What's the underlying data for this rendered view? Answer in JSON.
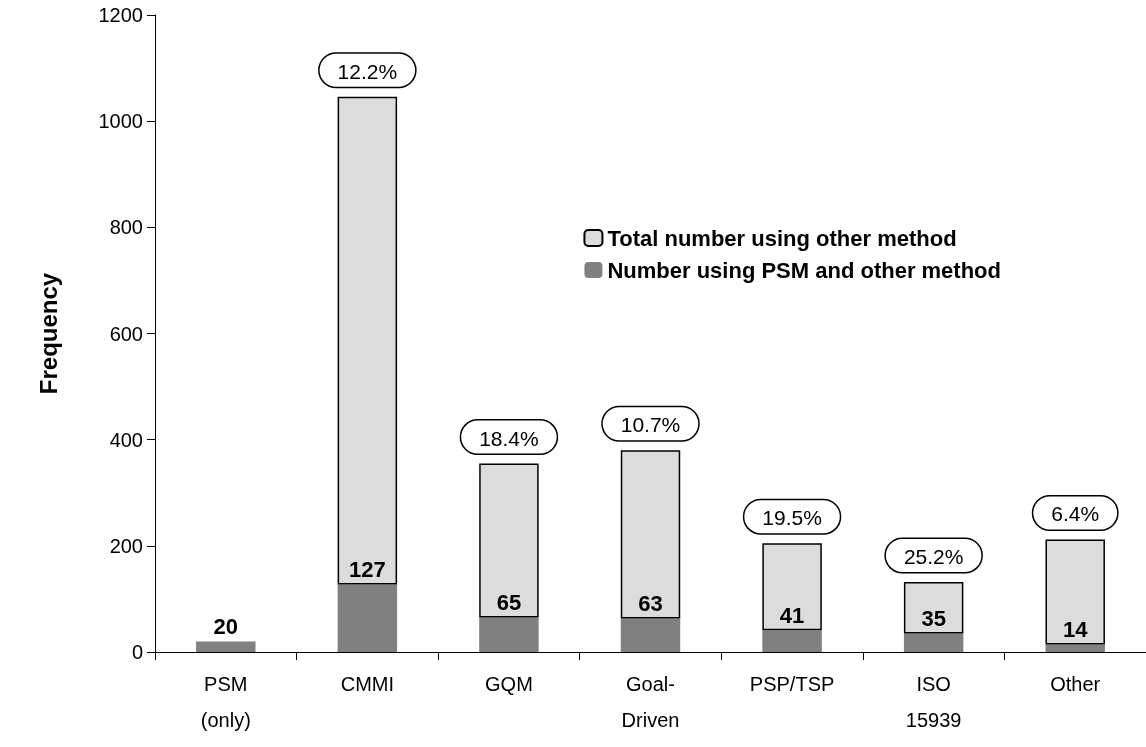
{
  "chart_data": {
    "type": "bar",
    "stacked": true,
    "ylabel": "Frequency",
    "categories": [
      "PSM\n(only)",
      "CMMI",
      "GQM",
      "Goal-\nDriven",
      "PSP/TSP",
      "ISO\n15939",
      "Other"
    ],
    "series": [
      {
        "name": "Number using PSM and other method",
        "color": "#808080",
        "values": [
          20,
          127,
          65,
          63,
          41,
          35,
          14
        ],
        "data_labels": true
      },
      {
        "name": "Total number using other method",
        "color": "#dcdcdc",
        "values": [
          null,
          919,
          290,
          317,
          164,
          97,
          198
        ]
      }
    ],
    "annotations": [
      {
        "text": "12.2%",
        "x": "CMMI",
        "y": 1046
      },
      {
        "text": "18.4%",
        "x": "GQM",
        "y": 355
      },
      {
        "text": "10.7%",
        "x": "Goal-\nDriven",
        "y": 380
      },
      {
        "text": "19.5%",
        "x": "PSP/TSP",
        "y": 205
      },
      {
        "text": "25.2%",
        "x": "ISO\n15939",
        "y": 132
      },
      {
        "text": "6.4%",
        "x": "Other",
        "y": 212
      }
    ],
    "ylim": [
      0,
      1200
    ],
    "yticks": [
      0,
      200,
      400,
      600,
      800,
      1000,
      1200
    ],
    "grid": false,
    "legend": "top right"
  }
}
